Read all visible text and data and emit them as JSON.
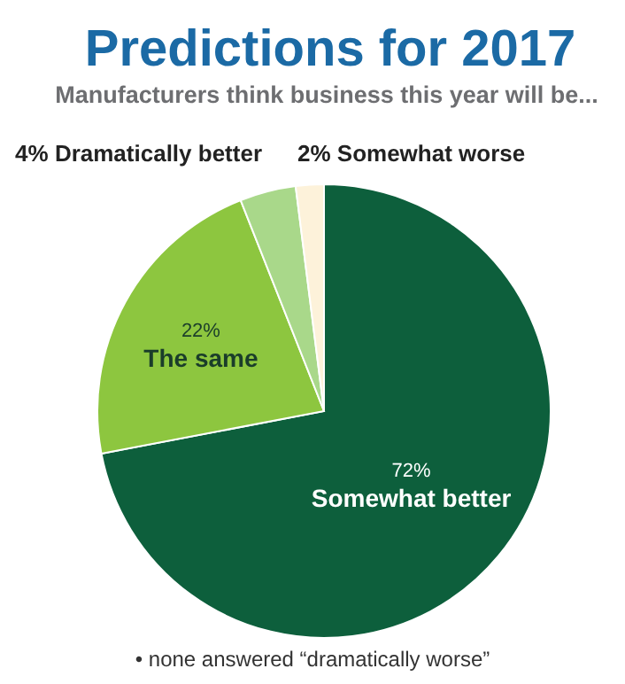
{
  "chart_data": {
    "type": "pie",
    "title": "Predictions for 2017",
    "subtitle": "Manufacturers think business this year will be...",
    "categories": [
      "Somewhat better",
      "The same",
      "Dramatically better",
      "Somewhat worse"
    ],
    "values": [
      72,
      22,
      4,
      2
    ],
    "value_labels": [
      "72%",
      "22%",
      "4%",
      "2%"
    ],
    "colors": [
      "#0d5f3c",
      "#8dc63f",
      "#a9d88a",
      "#fdf2da"
    ],
    "annotations": [
      "• none answered “dramatically worse”"
    ]
  }
}
